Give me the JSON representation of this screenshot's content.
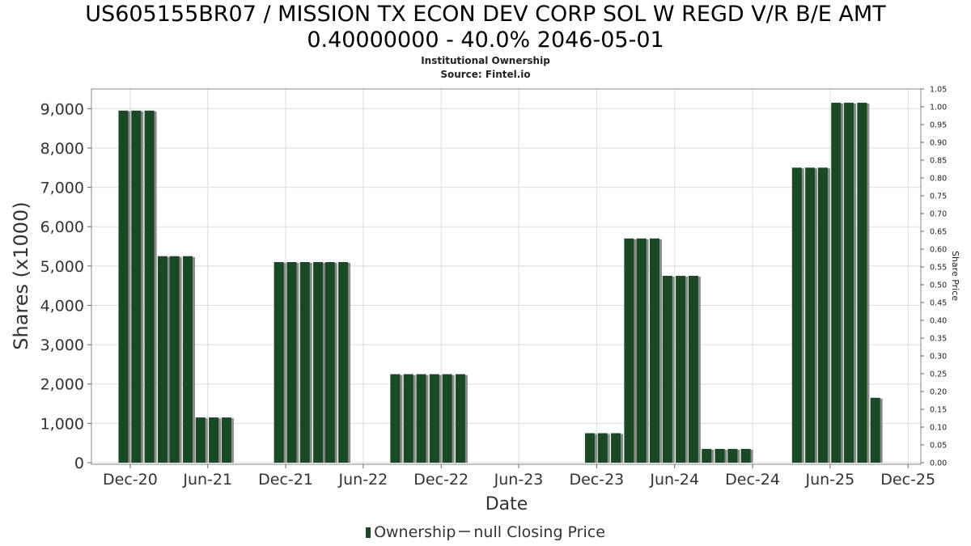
{
  "title_line1": "US605155BR07 / MISSION TX ECON DEV CORP SOL W REGD V/R B/E AMT",
  "title_line2": "0.40000000 - 40.0% 2046-05-01",
  "subtitle1": "Institutional Ownership",
  "subtitle2": "Source: Fintel.io",
  "legend": {
    "ownership": "Ownership",
    "price": "null Closing Price"
  },
  "colors": {
    "bar": "#1a4a25",
    "bar_shadow": "#8a8a8a",
    "grid": "#dddddd"
  },
  "chart_data": {
    "type": "bar",
    "xlabel": "Date",
    "ylabel": "Shares (x1000)",
    "y2label": "Share Price",
    "ylim": [
      0,
      9500
    ],
    "y2lim": [
      0,
      1.05
    ],
    "grid": true,
    "legend_position": "bottom",
    "x_range": [
      "2020-09-01",
      "2025-12-31"
    ],
    "yticks": [
      0,
      1000,
      2000,
      3000,
      4000,
      5000,
      6000,
      7000,
      8000,
      9000
    ],
    "ytick_labels": [
      "0",
      "1,000",
      "2,000",
      "3,000",
      "4,000",
      "5,000",
      "6,000",
      "7,000",
      "8,000",
      "9,000"
    ],
    "y2ticks": [
      "0.00",
      "0.05",
      "0.10",
      "0.15",
      "0.20",
      "0.25",
      "0.30",
      "0.35",
      "0.40",
      "0.45",
      "0.50",
      "0.55",
      "0.60",
      "0.65",
      "0.70",
      "0.75",
      "0.80",
      "0.85",
      "0.90",
      "0.95",
      "1.00",
      "1.05"
    ],
    "xticks": [
      {
        "date": "2020-12-01",
        "label": "Dec-20"
      },
      {
        "date": "2021-06-01",
        "label": "Jun-21"
      },
      {
        "date": "2021-12-01",
        "label": "Dec-21"
      },
      {
        "date": "2022-06-01",
        "label": "Jun-22"
      },
      {
        "date": "2022-12-01",
        "label": "Dec-22"
      },
      {
        "date": "2023-06-01",
        "label": "Jun-23"
      },
      {
        "date": "2023-12-01",
        "label": "Dec-23"
      },
      {
        "date": "2024-06-01",
        "label": "Jun-24"
      },
      {
        "date": "2024-12-01",
        "label": "Dec-24"
      },
      {
        "date": "2025-06-01",
        "label": "Jun-25"
      },
      {
        "date": "2025-12-01",
        "label": "Dec-25"
      }
    ],
    "series": [
      {
        "name": "Ownership",
        "points": [
          {
            "date": "2020-11-15",
            "value": 8950
          },
          {
            "date": "2020-12-15",
            "value": 8950
          },
          {
            "date": "2021-01-15",
            "value": 8950
          },
          {
            "date": "2021-02-15",
            "value": 5250
          },
          {
            "date": "2021-03-15",
            "value": 5250
          },
          {
            "date": "2021-04-15",
            "value": 5250
          },
          {
            "date": "2021-05-15",
            "value": 1150
          },
          {
            "date": "2021-06-15",
            "value": 1150
          },
          {
            "date": "2021-07-15",
            "value": 1150
          },
          {
            "date": "2021-11-15",
            "value": 5100
          },
          {
            "date": "2021-12-15",
            "value": 5100
          },
          {
            "date": "2022-01-15",
            "value": 5100
          },
          {
            "date": "2022-02-15",
            "value": 5100
          },
          {
            "date": "2022-03-15",
            "value": 5100
          },
          {
            "date": "2022-04-15",
            "value": 5100
          },
          {
            "date": "2022-08-15",
            "value": 2250
          },
          {
            "date": "2022-09-15",
            "value": 2250
          },
          {
            "date": "2022-10-15",
            "value": 2250
          },
          {
            "date": "2022-11-15",
            "value": 2250
          },
          {
            "date": "2022-12-15",
            "value": 2250
          },
          {
            "date": "2023-01-15",
            "value": 2250
          },
          {
            "date": "2023-11-15",
            "value": 750
          },
          {
            "date": "2023-12-15",
            "value": 750
          },
          {
            "date": "2024-01-15",
            "value": 750
          },
          {
            "date": "2024-02-15",
            "value": 5700
          },
          {
            "date": "2024-03-15",
            "value": 5700
          },
          {
            "date": "2024-04-15",
            "value": 5700
          },
          {
            "date": "2024-05-15",
            "value": 4750
          },
          {
            "date": "2024-06-15",
            "value": 4750
          },
          {
            "date": "2024-07-15",
            "value": 4750
          },
          {
            "date": "2024-08-15",
            "value": 350
          },
          {
            "date": "2024-09-15",
            "value": 350
          },
          {
            "date": "2024-10-15",
            "value": 350
          },
          {
            "date": "2024-11-15",
            "value": 350
          },
          {
            "date": "2025-03-15",
            "value": 7500
          },
          {
            "date": "2025-04-15",
            "value": 7500
          },
          {
            "date": "2025-05-15",
            "value": 7500
          },
          {
            "date": "2025-06-15",
            "value": 9150
          },
          {
            "date": "2025-07-15",
            "value": 9150
          },
          {
            "date": "2025-08-15",
            "value": 9150
          },
          {
            "date": "2025-09-15",
            "value": 1650
          }
        ]
      }
    ]
  }
}
